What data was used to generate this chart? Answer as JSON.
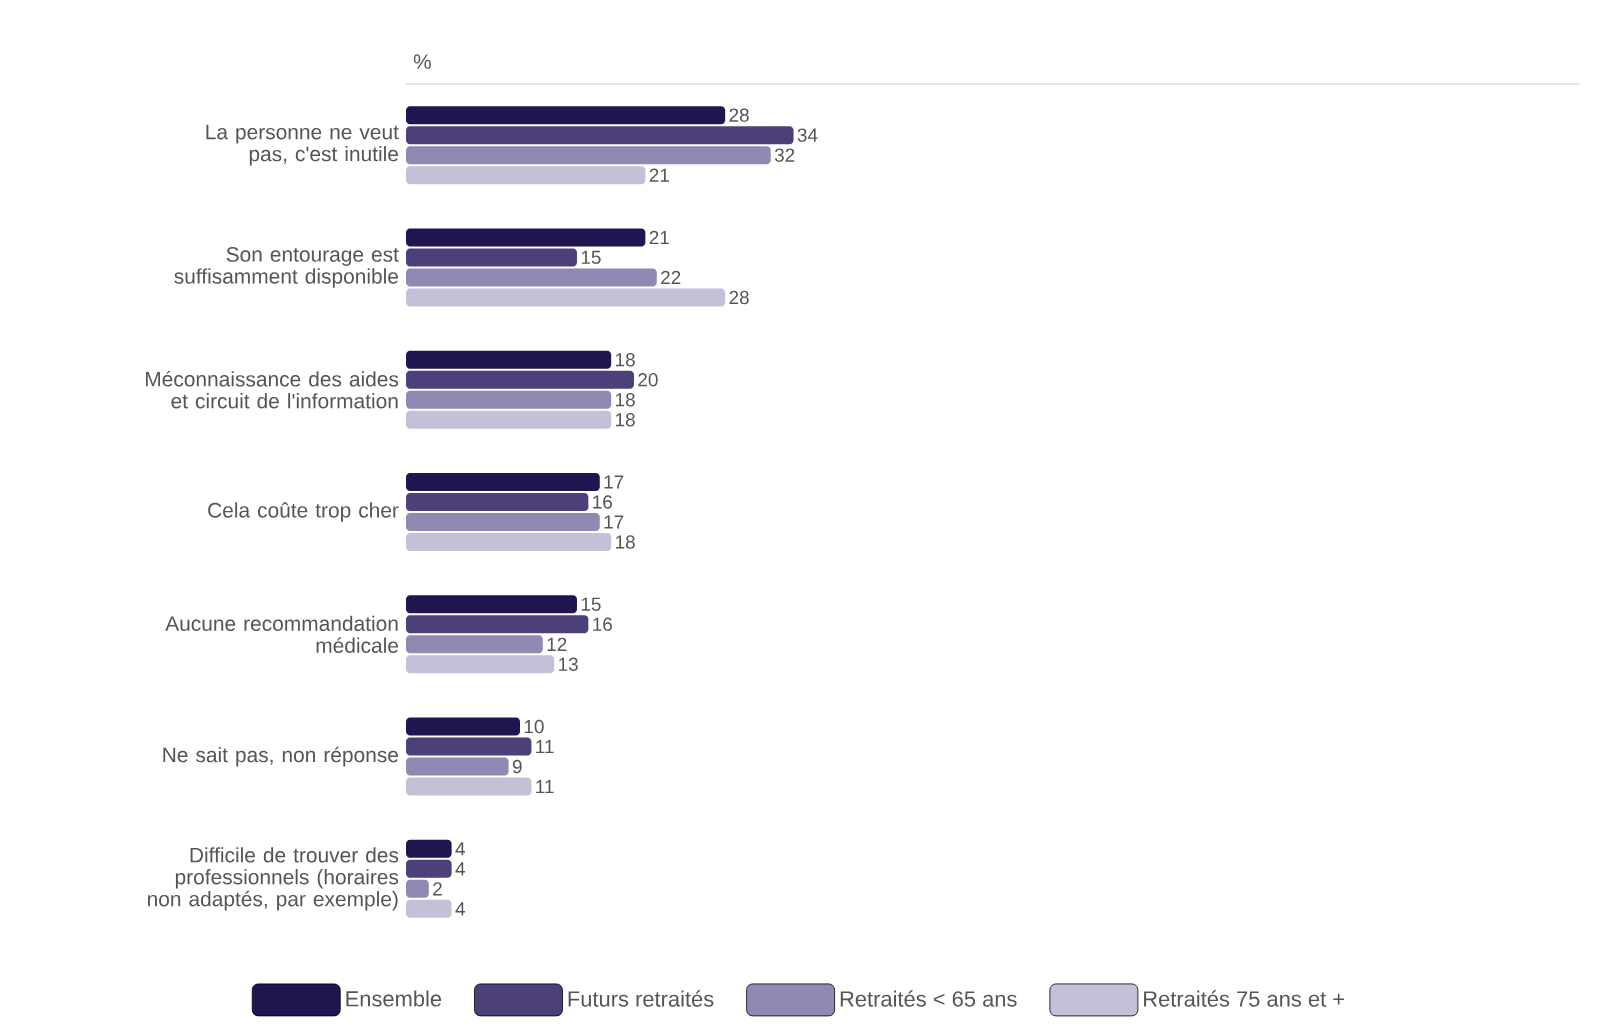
{
  "chart_data": {
    "type": "bar",
    "orientation": "horizontal",
    "xlabel": "%",
    "categories": [
      "La personne ne veut pas, c'est inutile",
      "Son entourage est suffisamment disponible",
      "Méconnaissance des aides et circuit de l'information",
      "Cela coûte trop cher",
      "Aucune recommandation médicale",
      "Ne sait pas, non réponse",
      "Difficile de trouver des professionnels (horaires non adaptés, par exemple)"
    ],
    "series": [
      {
        "name": "Ensemble",
        "color": "#21154f",
        "values": [
          28,
          21,
          18,
          17,
          15,
          10,
          4
        ]
      },
      {
        "name": "Futurs retraités",
        "color": "#4d3f78",
        "values": [
          34,
          15,
          20,
          16,
          16,
          11,
          4
        ]
      },
      {
        "name": "Retraités < 65 ans",
        "color": "#8f89b3",
        "values": [
          32,
          22,
          18,
          17,
          12,
          9,
          2
        ]
      },
      {
        "name": "Retraités 75 ans et +",
        "color": "#c3c0d8",
        "values": [
          21,
          28,
          18,
          18,
          13,
          11,
          4
        ]
      }
    ],
    "xlim": [
      0,
      103
    ],
    "data_labels": true,
    "legend": "bottom",
    "tick_labels": "y"
  }
}
